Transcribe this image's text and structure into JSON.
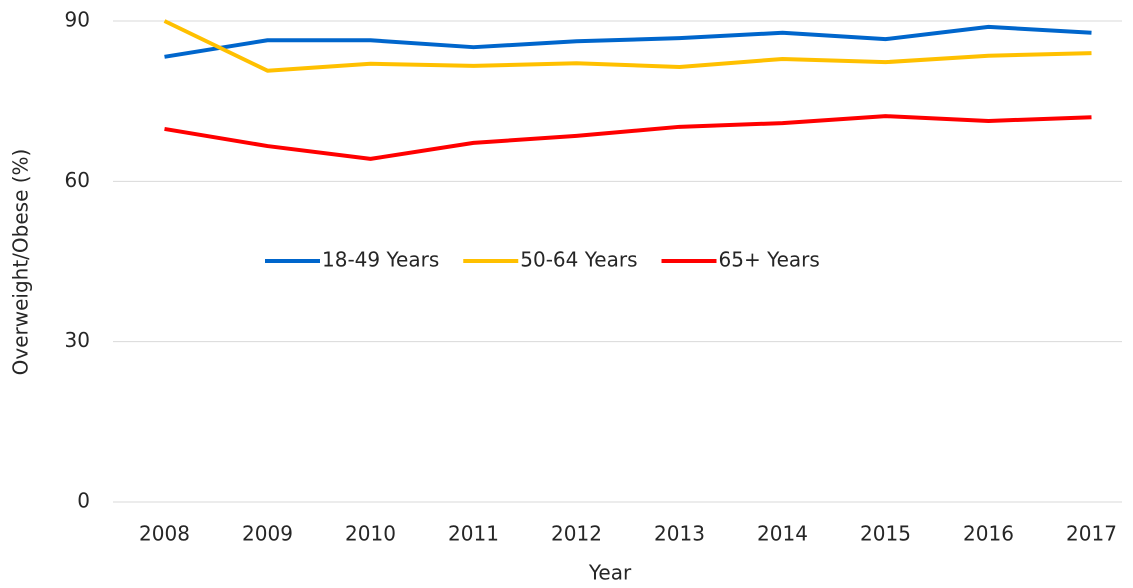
{
  "chart_data": {
    "type": "line",
    "x_label": "Year",
    "y_label": "Overweight/Obese (%)",
    "categories": [
      "2008",
      "2009",
      "2010",
      "2011",
      "2012",
      "2013",
      "2014",
      "2015",
      "2016",
      "2017"
    ],
    "series": [
      {
        "name": "18-49 Years",
        "color": "#0066cc",
        "values": [
          83.3,
          86.4,
          86.4,
          85.1,
          86.2,
          86.8,
          87.8,
          86.6,
          88.9,
          87.8
        ]
      },
      {
        "name": "50-64 Years",
        "color": "#ffc000",
        "values": [
          90,
          80.7,
          82.0,
          81.6,
          82.1,
          81.4,
          82.9,
          82.3,
          83.5,
          84.0
        ]
      },
      {
        "name": "65+ Years",
        "color": "#ff0000",
        "values": [
          69.8,
          66.6,
          64.2,
          67.2,
          68.5,
          70.2,
          70.9,
          72.2,
          71.3,
          72.0
        ]
      }
    ],
    "ylim": [
      0,
      90
    ],
    "yticks": [
      0,
      30,
      60,
      90
    ],
    "grid": true,
    "legend": "center"
  }
}
